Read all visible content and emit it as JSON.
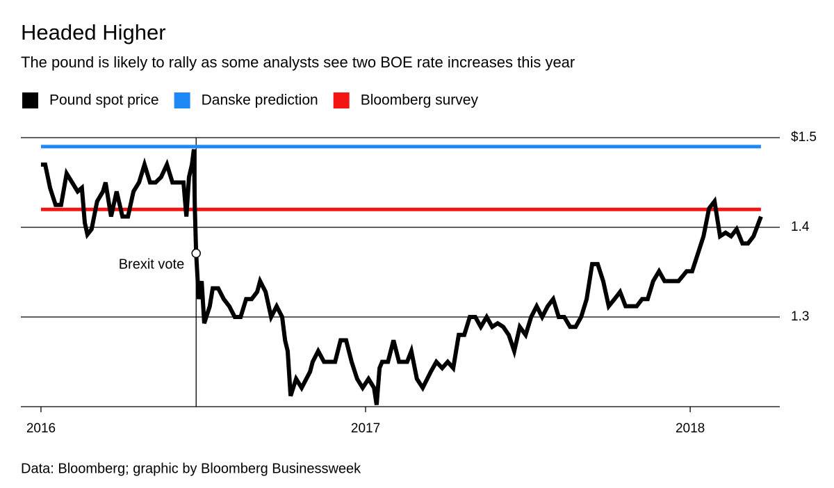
{
  "chart_data": {
    "type": "line",
    "title": "Headed Higher",
    "subtitle": "The pound is likely to rally as some analysts see two BOE rate increases this year",
    "source": "Data: Bloomberg; graphic by Bloomberg Businessweek",
    "xlim": [
      2015.938,
      2018.276
    ],
    "xticks": [
      2016,
      2017,
      2018
    ],
    "ylim": [
      1.2,
      1.5
    ],
    "yticks": [
      1.3,
      1.4,
      {
        "value": 1.5,
        "label": "$1.5"
      }
    ],
    "grid": true,
    "x": [
      2016.0,
      2016.013,
      2016.028,
      2016.045,
      2016.062,
      2016.079,
      2016.096,
      2016.113,
      2016.126,
      2016.135,
      2016.143,
      2016.156,
      2016.173,
      2016.191,
      2016.199,
      2016.216,
      2016.233,
      2016.251,
      2016.268,
      2016.285,
      2016.302,
      2016.319,
      2016.336,
      2016.353,
      2016.37,
      2016.388,
      2016.405,
      2016.422,
      2016.439,
      2016.448,
      2016.456,
      2016.465,
      2016.471,
      2016.474,
      2016.478,
      2016.486,
      2016.495,
      2016.503,
      2016.52,
      2016.529,
      2016.546,
      2016.563,
      2016.58,
      2016.597,
      2016.615,
      2016.632,
      2016.649,
      2016.666,
      2016.675,
      2016.692,
      2016.709,
      2016.726,
      2016.743,
      2016.752,
      2016.76,
      2016.769,
      2016.786,
      2016.803,
      2016.829,
      2016.837,
      2016.854,
      2016.872,
      2016.889,
      2016.906,
      2016.923,
      2016.94,
      2016.957,
      2016.974,
      2016.991,
      2017.009,
      2017.026,
      2017.034,
      2017.043,
      2017.051,
      2017.069,
      2017.086,
      2017.103,
      2017.128,
      2017.141,
      2017.158,
      2017.176,
      2017.201,
      2017.218,
      2017.236,
      2017.253,
      2017.27,
      2017.287,
      2017.304,
      2017.321,
      2017.338,
      2017.355,
      2017.373,
      2017.39,
      2017.407,
      2017.424,
      2017.441,
      2017.458,
      2017.475,
      2017.493,
      2017.51,
      2017.527,
      2017.544,
      2017.561,
      2017.578,
      2017.595,
      2017.612,
      2017.63,
      2017.647,
      2017.664,
      2017.681,
      2017.698,
      2017.715,
      2017.732,
      2017.749,
      2017.767,
      2017.784,
      2017.801,
      2017.818,
      2017.835,
      2017.852,
      2017.869,
      2017.886,
      2017.904,
      2017.921,
      2017.938,
      2017.964,
      2017.989,
      2018.006,
      2018.024,
      2018.041,
      2018.058,
      2018.075,
      2018.092,
      2018.109,
      2018.126,
      2018.143,
      2018.161,
      2018.178,
      2018.195,
      2018.218
    ],
    "series": [
      {
        "name": "Pound spot price",
        "color": "#000000",
        "values": [
          1.47,
          1.47,
          1.444,
          1.425,
          1.425,
          1.46,
          1.45,
          1.44,
          1.444,
          1.405,
          1.392,
          1.398,
          1.429,
          1.44,
          1.45,
          1.412,
          1.44,
          1.412,
          1.412,
          1.44,
          1.45,
          1.47,
          1.45,
          1.45,
          1.456,
          1.47,
          1.45,
          1.45,
          1.45,
          1.412,
          1.456,
          1.47,
          1.487,
          1.421,
          1.371,
          1.32,
          1.34,
          1.293,
          1.312,
          1.332,
          1.332,
          1.32,
          1.312,
          1.3,
          1.3,
          1.32,
          1.32,
          1.328,
          1.34,
          1.328,
          1.3,
          1.312,
          1.3,
          1.274,
          1.262,
          1.212,
          1.231,
          1.221,
          1.239,
          1.25,
          1.262,
          1.25,
          1.25,
          1.25,
          1.274,
          1.274,
          1.25,
          1.231,
          1.221,
          1.231,
          1.221,
          1.202,
          1.243,
          1.25,
          1.25,
          1.274,
          1.25,
          1.25,
          1.262,
          1.231,
          1.221,
          1.239,
          1.25,
          1.243,
          1.25,
          1.243,
          1.28,
          1.28,
          1.3,
          1.3,
          1.289,
          1.3,
          1.289,
          1.293,
          1.289,
          1.28,
          1.262,
          1.289,
          1.28,
          1.3,
          1.312,
          1.3,
          1.312,
          1.32,
          1.3,
          1.3,
          1.289,
          1.289,
          1.3,
          1.32,
          1.359,
          1.359,
          1.34,
          1.312,
          1.32,
          1.328,
          1.312,
          1.312,
          1.312,
          1.32,
          1.32,
          1.34,
          1.351,
          1.34,
          1.34,
          1.34,
          1.351,
          1.351,
          1.371,
          1.39,
          1.421,
          1.429,
          1.39,
          1.394,
          1.39,
          1.398,
          1.382,
          1.382,
          1.39,
          1.412
        ]
      },
      {
        "name": "Danske prediction",
        "color": "#1e88f5",
        "x": [
          2016.0,
          2018.218
        ],
        "values": [
          1.49,
          1.49
        ]
      },
      {
        "name": "Bloomberg survey",
        "color": "#f51414",
        "x": [
          2016.0,
          2018.218
        ],
        "values": [
          1.42,
          1.42
        ]
      }
    ],
    "annotations": [
      {
        "text": "Brexit vote",
        "x": 2016.478,
        "y": 1.371
      }
    ]
  }
}
